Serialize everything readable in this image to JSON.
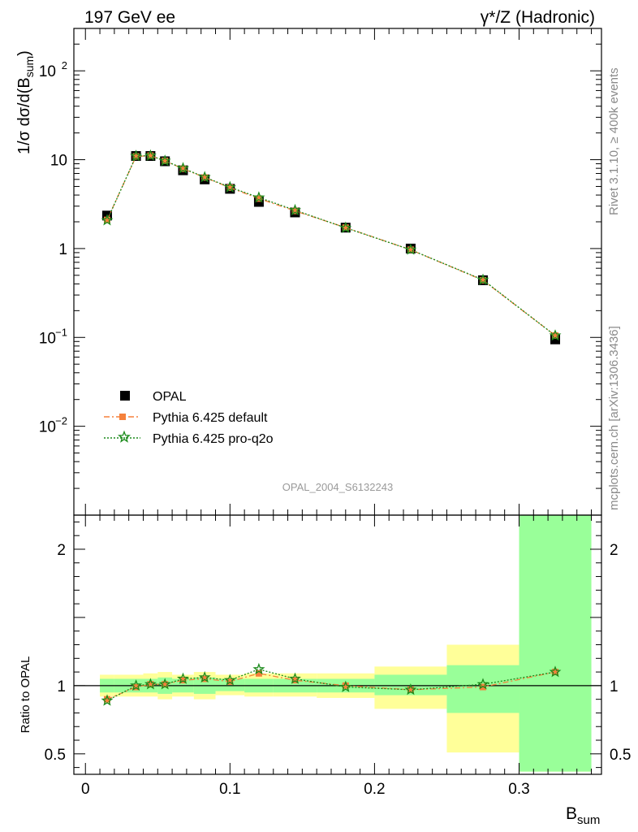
{
  "header": {
    "left": "197 GeV ee",
    "right": "γ*/Z (Hadronic)"
  },
  "side": {
    "rivet": "Rivet 3.1.10, ≥ 400k events",
    "mcplots": "mcplots.cern.ch [arXiv:1306.3436]"
  },
  "analysis_tag": "OPAL_2004_S6132243",
  "colors": {
    "data": "#000000",
    "default": "#f5813c",
    "proq2o": "#1a8a1a",
    "band_outer": "#ffff99",
    "band_inner": "#99ff99"
  },
  "chart_data": [
    {
      "type": "scatter",
      "ylabel": "1/σ dσ/d(B_sum)",
      "yscale": "log",
      "ylim": [
        0.001,
        300
      ],
      "xlim": [
        -0.008,
        0.357
      ],
      "yticks": [
        "10^-2",
        "10^-1",
        "1",
        "10",
        "10^2"
      ],
      "legend": {
        "placement": "bottom-left",
        "entries": [
          "OPAL",
          "Pythia 6.425 default",
          "Pythia 6.425 pro-q2o"
        ]
      },
      "bins": [
        [
          0.01,
          0.02
        ],
        [
          0.02,
          0.04
        ],
        [
          0.04,
          0.05
        ],
        [
          0.05,
          0.06
        ],
        [
          0.06,
          0.075
        ],
        [
          0.075,
          0.09
        ],
        [
          0.09,
          0.11
        ],
        [
          0.11,
          0.13
        ],
        [
          0.13,
          0.16
        ],
        [
          0.16,
          0.2
        ],
        [
          0.2,
          0.25
        ],
        [
          0.25,
          0.3
        ],
        [
          0.3,
          0.35
        ]
      ],
      "x": [
        0.015,
        0.035,
        0.045,
        0.055,
        0.0675,
        0.0825,
        0.1,
        0.12,
        0.145,
        0.18,
        0.225,
        0.275,
        0.325
      ],
      "series": [
        {
          "name": "OPAL",
          "values": [
            2.35,
            11.0,
            11.0,
            9.6,
            7.6,
            6.0,
            4.7,
            3.35,
            2.55,
            1.72,
            1.0,
            0.44,
            0.095
          ]
        },
        {
          "name": "Pythia 6.425 default",
          "values": [
            2.1,
            10.9,
            11.1,
            9.7,
            7.9,
            6.3,
            4.85,
            3.65,
            2.65,
            1.72,
            0.97,
            0.44,
            0.105
          ]
        },
        {
          "name": "Pythia 6.425 pro-q2o",
          "values": [
            2.08,
            11.0,
            11.1,
            9.7,
            8.0,
            6.35,
            4.9,
            3.75,
            2.7,
            1.71,
            0.97,
            0.445,
            0.105
          ]
        }
      ]
    },
    {
      "type": "line",
      "ylabel": "Ratio to OPAL",
      "xlabel": "B_sum",
      "ylim": [
        0.35,
        2.25
      ],
      "xlim": [
        -0.008,
        0.357
      ],
      "xticks": [
        "0",
        "0.1",
        "0.2",
        "0.3"
      ],
      "yticks": [
        "0.5",
        "1",
        "2"
      ],
      "band_outer": [
        [
          0.92,
          1.08
        ],
        [
          0.92,
          1.08
        ],
        [
          0.92,
          1.09
        ],
        [
          0.9,
          1.1
        ],
        [
          0.92,
          1.08
        ],
        [
          0.9,
          1.1
        ],
        [
          0.93,
          1.08
        ],
        [
          0.92,
          1.09
        ],
        [
          0.92,
          1.09
        ],
        [
          0.91,
          1.09
        ],
        [
          0.83,
          1.14
        ],
        [
          0.51,
          1.3
        ],
        [
          0.37,
          2.25
        ]
      ],
      "band_inner": [
        [
          0.95,
          1.05
        ],
        [
          0.95,
          1.05
        ],
        [
          0.95,
          1.05
        ],
        [
          0.94,
          1.06
        ],
        [
          0.95,
          1.05
        ],
        [
          0.94,
          1.06
        ],
        [
          0.96,
          1.05
        ],
        [
          0.95,
          1.05
        ],
        [
          0.95,
          1.05
        ],
        [
          0.95,
          1.05
        ],
        [
          0.93,
          1.08
        ],
        [
          0.8,
          1.15
        ],
        [
          0.37,
          2.25
        ]
      ],
      "series": [
        {
          "name": "Pythia 6.425 default",
          "values": [
            0.9,
            0.99,
            1.01,
            1.01,
            1.04,
            1.05,
            1.03,
            1.09,
            1.04,
            1.0,
            0.97,
            0.99,
            1.1
          ]
        },
        {
          "name": "Pythia 6.425 pro-q2o",
          "values": [
            0.89,
            1.0,
            1.01,
            1.01,
            1.05,
            1.06,
            1.04,
            1.12,
            1.05,
            0.99,
            0.97,
            1.01,
            1.1
          ]
        }
      ]
    }
  ]
}
